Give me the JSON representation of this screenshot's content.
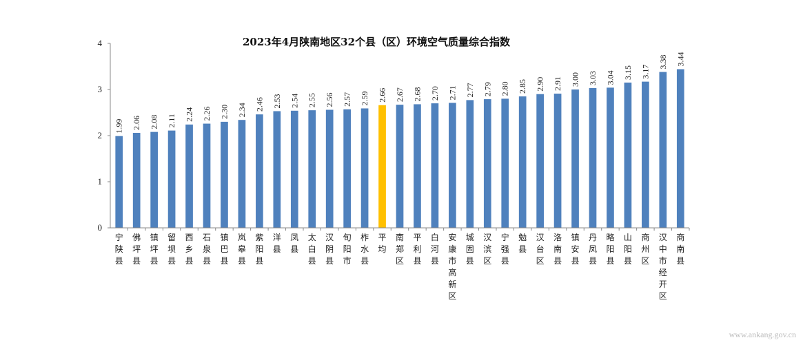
{
  "chart_data": {
    "type": "bar",
    "title": "2023年4月陕南地区32个县（区）环境空气质量综合指数",
    "xlabel": "",
    "ylabel": "",
    "ylim": [
      0,
      4
    ],
    "yticks": [
      0,
      1,
      2,
      3,
      4
    ],
    "grid": false,
    "legend": "none",
    "categories": [
      "宁陕县",
      "佛坪县",
      "镇坪县",
      "留坝县",
      "西乡县",
      "石泉县",
      "镇巴县",
      "岚皋县",
      "紫阳县",
      "洋县",
      "凤县",
      "太白县",
      "汉阴县",
      "旬阳市",
      "柞水县",
      "平均",
      "南郑区",
      "平利县",
      "白河县",
      "安康市高新区",
      "城固县",
      "汉滨区",
      "宁强县",
      "勉县",
      "汉台区",
      "洛南县",
      "镇安县",
      "丹凤县",
      "略阳县",
      "山阳县",
      "商州区",
      "汉中市经开区",
      "商南县"
    ],
    "values": [
      1.99,
      2.06,
      2.08,
      2.11,
      2.24,
      2.26,
      2.3,
      2.34,
      2.46,
      2.53,
      2.54,
      2.55,
      2.56,
      2.57,
      2.59,
      2.66,
      2.67,
      2.68,
      2.7,
      2.71,
      2.77,
      2.79,
      2.8,
      2.85,
      2.9,
      2.91,
      3.0,
      3.03,
      3.04,
      3.15,
      3.17,
      3.38,
      3.44
    ],
    "value_labels": [
      "1.99",
      "2.06",
      "2.08",
      "2.11",
      "2.24",
      "2.26",
      "2.30",
      "2.34",
      "2.46",
      "2.53",
      "2.54",
      "2.55",
      "2.56",
      "2.57",
      "2.59",
      "2.66",
      "2.67",
      "2.68",
      "2.70",
      "2.71",
      "2.77",
      "2.79",
      "2.80",
      "2.85",
      "2.90",
      "2.91",
      "3.00",
      "3.03",
      "3.04",
      "3.15",
      "3.17",
      "3.38",
      "3.44"
    ],
    "highlight_category": "平均",
    "colors": {
      "bar": "#4f81bd",
      "highlight": "#ffc000",
      "axis": "#888888"
    }
  },
  "watermark": "www.ankang.gov.cn"
}
